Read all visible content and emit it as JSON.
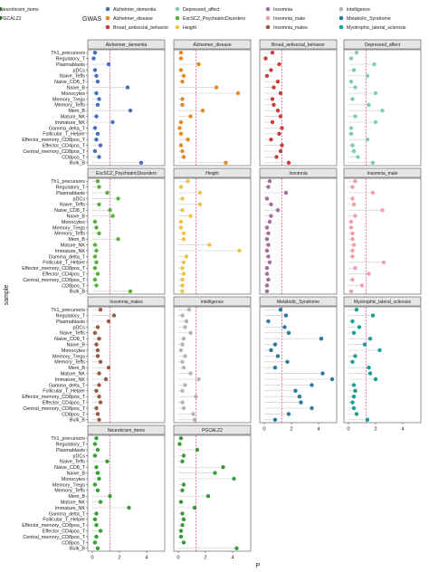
{
  "legend": {
    "title": "GWAS",
    "items": [
      {
        "label": "Alzheimer_dementia",
        "color": "#4a6fb8"
      },
      {
        "label": "Alzheimer_disease",
        "color": "#e58a22"
      },
      {
        "label": "Broad_antisocial_behavior",
        "color": "#c6403b"
      },
      {
        "label": "Depressed_affect",
        "color": "#83c9b9"
      },
      {
        "label": "ExcSCZ_PsychiatricDisorders",
        "color": "#5fad3e"
      },
      {
        "label": "Height",
        "color": "#f2c33c"
      },
      {
        "label": "Insomnia",
        "color": "#a36f9c"
      },
      {
        "label": "Insomnia_male",
        "color": "#f0a0a8"
      },
      {
        "label": "Insomnia_males",
        "color": "#9b5a44"
      },
      {
        "label": "intelligence",
        "color": "#b3b3b3"
      },
      {
        "label": "Metabolic_Syndrome",
        "color": "#2b7a9c"
      },
      {
        "label": "Myotrophic_lateral_sclerosis",
        "color": "#1b9e94"
      },
      {
        "label": "Neuroticism_items",
        "color": "#3b9e37"
      },
      {
        "label": "PGCALZ2",
        "color": "#3a9a3a"
      }
    ]
  },
  "chart_data": {
    "type": "scatter",
    "subtype": "lollipop-faceted",
    "xlabel": "P",
    "ylabel": "sample",
    "xlim": [
      0,
      5
    ],
    "x_ticks": [
      "0",
      "2",
      "4"
    ],
    "threshold_line": 1.3,
    "threshold_color": "#e0207a",
    "categories": [
      "Th1_precursors",
      "Regulatory_T",
      "Plasmablasts",
      "pDCs",
      "Naive_Teffs",
      "Naive_CD8_T",
      "Naive_B",
      "Monocytes",
      "Memory_Tregs",
      "Memory_Teffs",
      "Mem_B",
      "Mature_NK",
      "Immature_NK",
      "Gamma_delta_T",
      "Follicular_T_Helper",
      "Effector_memory_CD8pos_T",
      "Effector_CD4pos_T",
      "Central_memory_CD8pos_T",
      "CD8pos_T",
      "Bulk_B"
    ],
    "facets": [
      {
        "name": "Alzheimer_dementia",
        "color": "#4a6fb8",
        "values": [
          0.2,
          0.1,
          1.2,
          0.2,
          0.3,
          0.4,
          2.6,
          0.3,
          0.5,
          0.4,
          2.8,
          0.3,
          1.5,
          0.2,
          0.4,
          0.3,
          0.6,
          0.2,
          0.5,
          3.6
        ]
      },
      {
        "name": "Alzheimer_disease",
        "color": "#e58a22",
        "values": [
          0.2,
          0.2,
          1.5,
          0.2,
          0.4,
          0.3,
          2.8,
          4.4,
          0.3,
          0.3,
          1.8,
          0.9,
          0.2,
          0.1,
          0.2,
          0.7,
          0.2,
          0.3,
          0.4,
          3.5
        ]
      },
      {
        "name": "Broad_antisocial_behavior",
        "color": "#c6403b",
        "values": [
          0.6,
          0.1,
          1.1,
          0.5,
          0.2,
          1.0,
          0.7,
          1.2,
          0.6,
          0.7,
          1.0,
          1.2,
          0.6,
          1.3,
          1.1,
          0.5,
          1.3,
          1.2,
          0.9,
          1.8
        ]
      },
      {
        "name": "Depressed_affect",
        "color": "#83c9b9",
        "values": [
          0.6,
          0.2,
          1.9,
          0.4,
          1.4,
          0.2,
          0.5,
          2.0,
          0.3,
          1.5,
          2.5,
          0.5,
          2.0,
          0.2,
          0.2,
          1.4,
          0.3,
          0.4,
          0.7,
          1.8
        ]
      },
      {
        "name": "ExcSCZ_PsychiatricDisorders",
        "color": "#5fad3e",
        "values": [
          0.4,
          0.5,
          1.1,
          1.9,
          0.5,
          1.3,
          1.5,
          0.2,
          0.3,
          0.5,
          1.9,
          0.2,
          0.3,
          0.2,
          0.3,
          0.2,
          0.4,
          0.2,
          0.3,
          2.8
        ]
      },
      {
        "name": "Height",
        "color": "#f2c33c",
        "values": [
          0.7,
          0.2,
          1.6,
          0.3,
          1.6,
          0.3,
          0.9,
          0.2,
          0.2,
          0.4,
          0.4,
          2.3,
          4.5,
          0.6,
          0.4,
          0.3,
          0.4,
          0.3,
          0.3,
          0.3
        ]
      },
      {
        "name": "Insomnia",
        "color": "#a36f9c",
        "values": [
          0.4,
          0.3,
          1.6,
          0.2,
          0.5,
          1.0,
          0.5,
          0.4,
          0.2,
          0.3,
          0.2,
          0.3,
          0.2,
          0.3,
          0.4,
          0.2,
          0.2,
          0.3,
          0.2,
          0.2
        ]
      },
      {
        "name": "Insomnia_male",
        "color": "#f0a0a8",
        "values": [
          0.5,
          0.3,
          1.8,
          0.3,
          0.4,
          2.5,
          0.5,
          0.2,
          0.2,
          0.3,
          0.3,
          0.4,
          0.3,
          0.3,
          2.6,
          0.5,
          1.5,
          0.3,
          1.0,
          0.2
        ]
      },
      {
        "name": "Insomnia_males",
        "color": "#9b5a44",
        "values": [
          0.6,
          1.6,
          1.2,
          0.4,
          0.2,
          0.5,
          0.3,
          0.4,
          0.4,
          0.6,
          1.2,
          0.5,
          1.0,
          0.5,
          0.3,
          0.5,
          0.6,
          0.3,
          0.4,
          0.5
        ]
      },
      {
        "name": "intelligence",
        "color": "#b3b3b3",
        "values": [
          0.8,
          0.3,
          0.6,
          0.5,
          0.9,
          0.4,
          0.3,
          0.2,
          0.5,
          0.3,
          0.4,
          0.9,
          1.5,
          0.5,
          0.3,
          1.3,
          0.3,
          0.4,
          1.1,
          1.2
        ]
      },
      {
        "name": "Metabolic_Syndrome",
        "color": "#2b7a9c",
        "values": [
          1.2,
          1.6,
          0.3,
          1.5,
          1.8,
          4.2,
          0.8,
          0.5,
          1.0,
          1.7,
          0.8,
          4.3,
          5.0,
          3.5,
          2.3,
          2.6,
          2.7,
          3.5,
          1.8,
          0.8
        ]
      },
      {
        "name": "Myotrophic_lateral_sclerosis",
        "color": "#1b9e94",
        "values": [
          0.6,
          1.8,
          0.3,
          0.8,
          0.4,
          1.6,
          1.2,
          2.3,
          0.5,
          0.3,
          1.5,
          1.6,
          2.0,
          0.4,
          0.5,
          0.4,
          0.3,
          0.4,
          0.6,
          1.4
        ]
      },
      {
        "name": "Neuroticism_items",
        "color": "#3b9e37",
        "values": [
          0.3,
          0.2,
          0.4,
          0.2,
          1.1,
          0.3,
          0.4,
          0.5,
          0.2,
          0.4,
          1.3,
          0.6,
          2.7,
          0.3,
          0.2,
          0.3,
          0.6,
          0.3,
          0.2,
          0.4
        ]
      },
      {
        "name": "PGCALZ2",
        "color": "#3a9a3a",
        "values": [
          0.2,
          0.1,
          1.4,
          0.4,
          0.3,
          3.3,
          2.7,
          4.1,
          0.4,
          0.3,
          2.2,
          0.2,
          1.2,
          0.3,
          0.4,
          0.3,
          0.2,
          0.2,
          0.4,
          4.3
        ]
      }
    ]
  }
}
